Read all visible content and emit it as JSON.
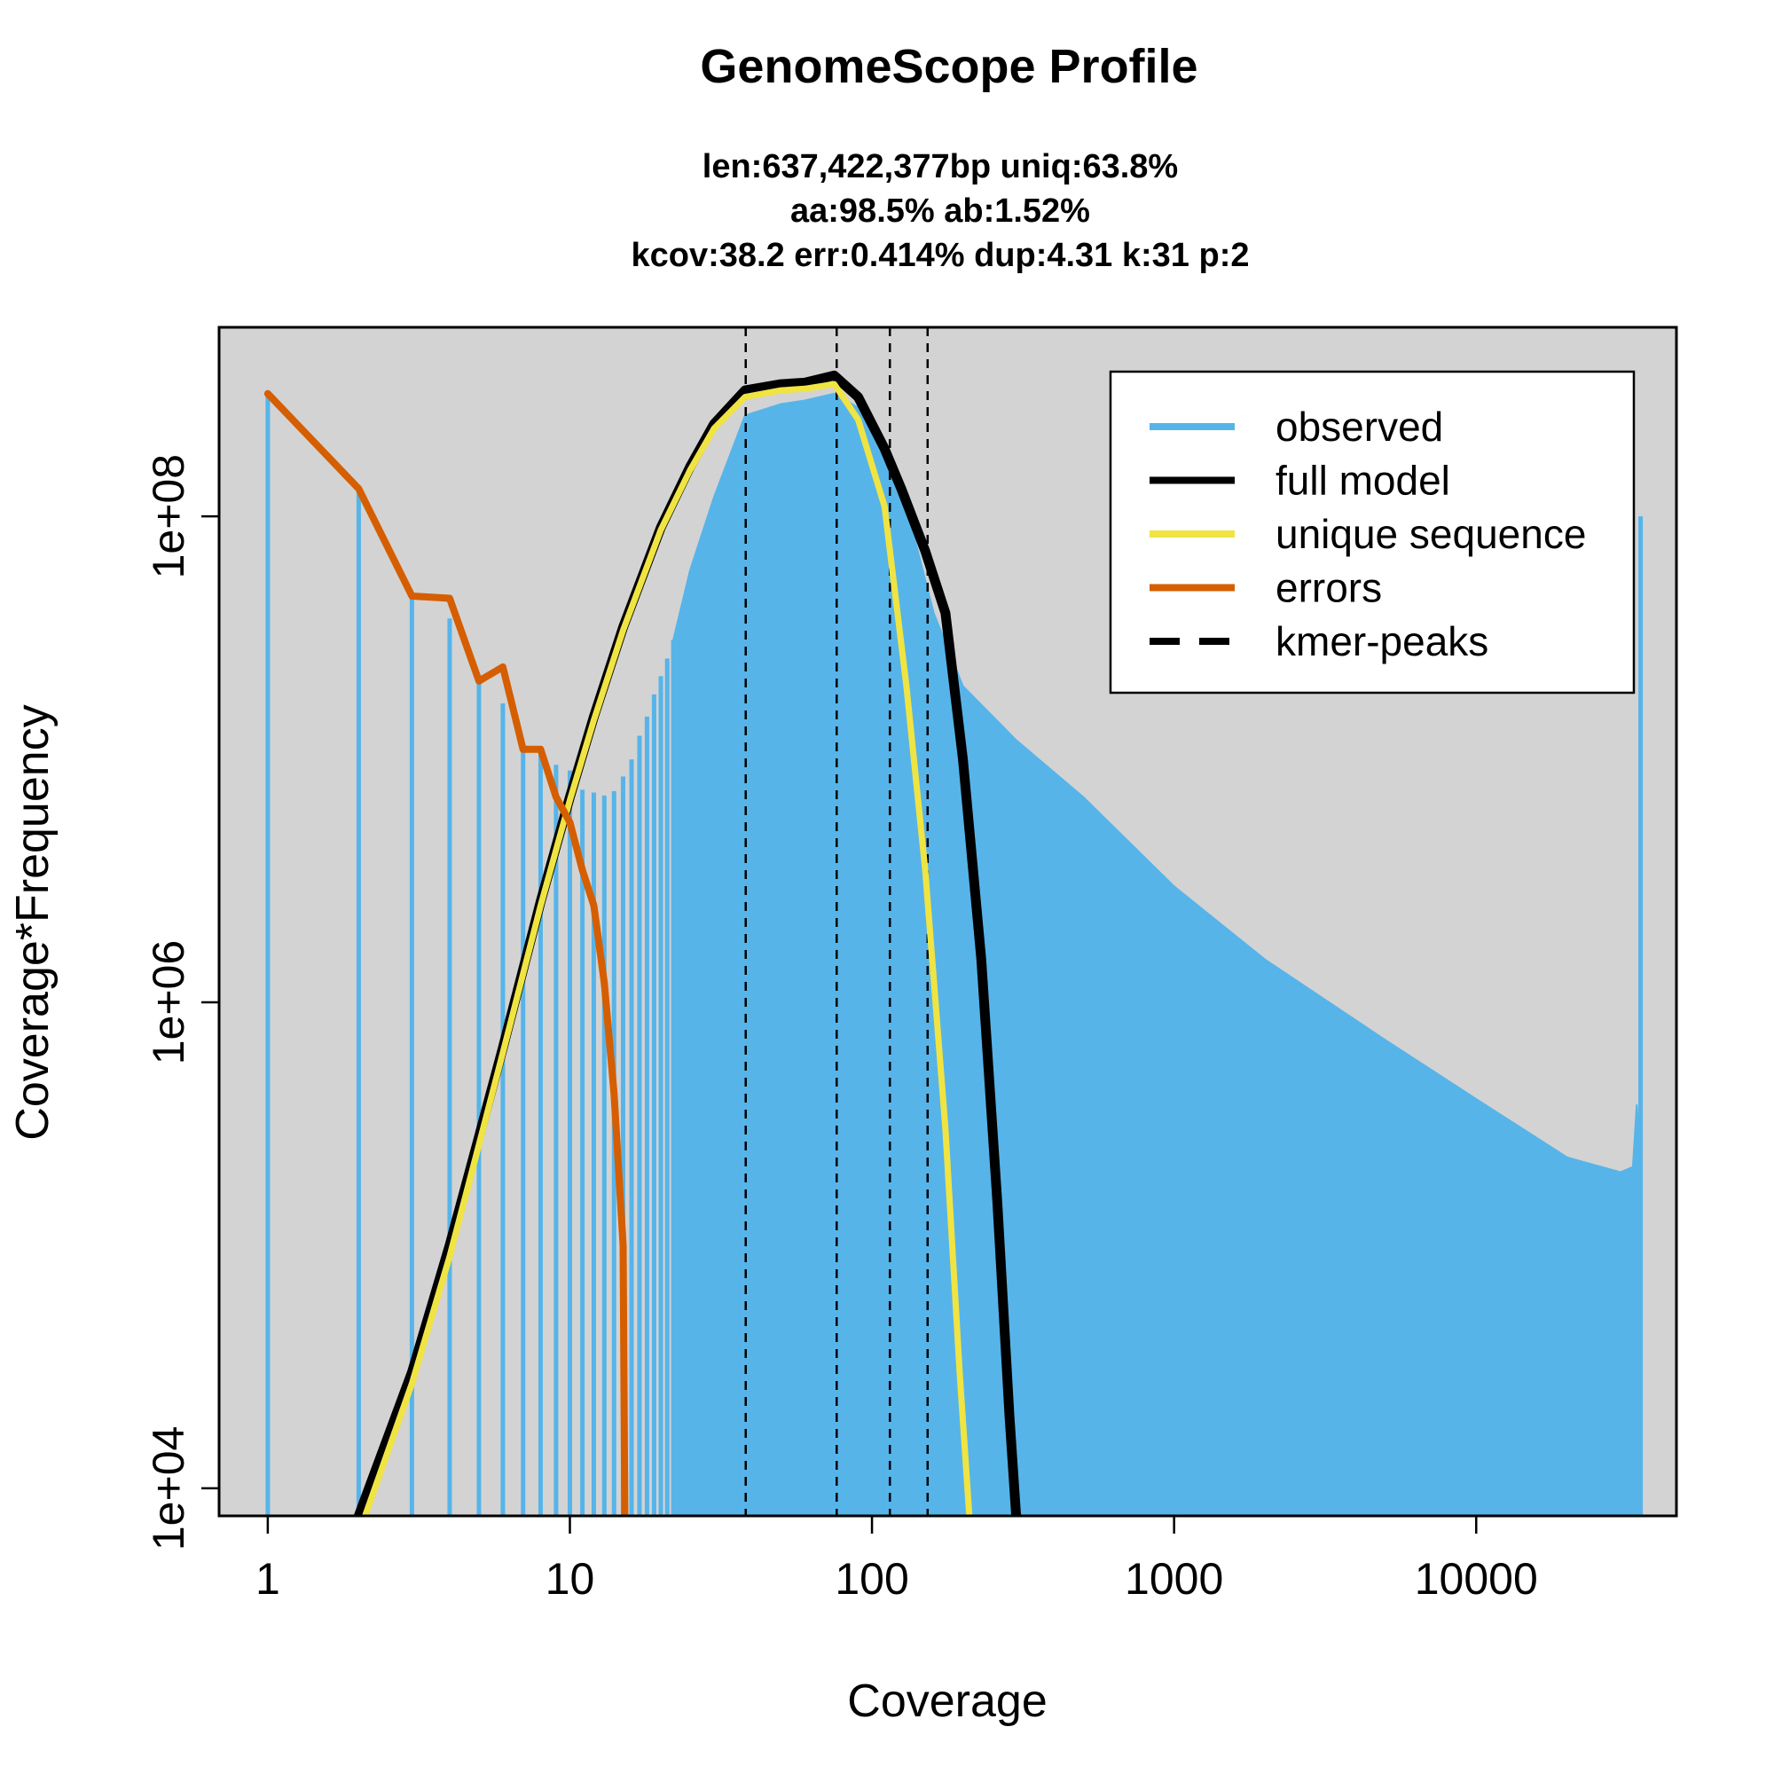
{
  "chart_data": {
    "type": "line",
    "title": "GenomeScope Profile",
    "subtitle_lines": [
      "len:637,422,377bp uniq:63.8%",
      "aa:98.5% ab:1.52%",
      "kcov:38.2 err:0.414%  dup:4.31  k:31 p:2"
    ],
    "xlabel": "Coverage",
    "ylabel": "Coverage*Frequency",
    "x_scale": "log",
    "y_scale": "log",
    "xlim": [
      0.69,
      46000
    ],
    "ylim": [
      7700,
      600000000
    ],
    "x_ticks": [
      {
        "v": 1,
        "label": "1"
      },
      {
        "v": 10,
        "label": "10"
      },
      {
        "v": 100,
        "label": "100"
      },
      {
        "v": 1000,
        "label": "1000"
      },
      {
        "v": 10000,
        "label": "10000"
      }
    ],
    "y_ticks": [
      {
        "v": 10000,
        "label": "1e+04"
      },
      {
        "v": 1000000,
        "label": "1e+06"
      },
      {
        "v": 100000000,
        "label": "1e+08"
      }
    ],
    "background": "#d3d3d3",
    "colors": {
      "observed": "#56b4e9",
      "full_model": "#000000",
      "unique_sequence": "#f0e442",
      "errors": "#d55e00",
      "kmer_peaks": "#000000"
    },
    "legend": {
      "position": "top-right",
      "entries": [
        {
          "label": "observed",
          "key": "observed",
          "dashed": false
        },
        {
          "label": "full model",
          "key": "full_model",
          "dashed": false
        },
        {
          "label": "unique sequence",
          "key": "unique_sequence",
          "dashed": false
        },
        {
          "label": "errors",
          "key": "errors",
          "dashed": false
        },
        {
          "label": "kmer-peaks",
          "key": "kmer_peaks",
          "dashed": true
        }
      ]
    },
    "kmer_peaks": [
      38.2,
      76.4,
      114.6,
      152.8
    ],
    "observed_discrete": [
      {
        "x": 1,
        "y": 320000000
      },
      {
        "x": 2,
        "y": 130000000
      },
      {
        "x": 3,
        "y": 47000000
      },
      {
        "x": 4,
        "y": 38000000
      },
      {
        "x": 5,
        "y": 21000000
      },
      {
        "x": 6,
        "y": 17000000
      },
      {
        "x": 7,
        "y": 11000000
      },
      {
        "x": 8,
        "y": 10500000
      },
      {
        "x": 9,
        "y": 9500000
      },
      {
        "x": 10,
        "y": 9000000
      },
      {
        "x": 11,
        "y": 7500000
      },
      {
        "x": 12,
        "y": 7300000
      },
      {
        "x": 13,
        "y": 7100000
      },
      {
        "x": 14,
        "y": 7400000
      },
      {
        "x": 15,
        "y": 8500000
      },
      {
        "x": 16,
        "y": 10000000
      },
      {
        "x": 17,
        "y": 12500000
      },
      {
        "x": 18,
        "y": 15000000
      },
      {
        "x": 19,
        "y": 18500000
      },
      {
        "x": 20,
        "y": 22000000
      },
      {
        "x": 21,
        "y": 26000000
      },
      {
        "x": 22,
        "y": 31000000
      }
    ],
    "observed_envelope": [
      {
        "x": 22,
        "y": 31000000
      },
      {
        "x": 25,
        "y": 60000000
      },
      {
        "x": 30,
        "y": 120000000
      },
      {
        "x": 38,
        "y": 260000000
      },
      {
        "x": 50,
        "y": 290000000
      },
      {
        "x": 60,
        "y": 300000000
      },
      {
        "x": 75,
        "y": 320000000
      },
      {
        "x": 90,
        "y": 280000000
      },
      {
        "x": 110,
        "y": 200000000
      },
      {
        "x": 130,
        "y": 110000000
      },
      {
        "x": 160,
        "y": 40000000
      },
      {
        "x": 200,
        "y": 20000000
      },
      {
        "x": 300,
        "y": 12000000
      },
      {
        "x": 500,
        "y": 7000000
      },
      {
        "x": 1000,
        "y": 3000000
      },
      {
        "x": 2000,
        "y": 1500000
      },
      {
        "x": 5000,
        "y": 700000
      },
      {
        "x": 10000,
        "y": 400000
      },
      {
        "x": 20000,
        "y": 230000
      },
      {
        "x": 30000,
        "y": 200000
      },
      {
        "x": 33000,
        "y": 210000
      },
      {
        "x": 34000,
        "y": 380000
      },
      {
        "x": 35000,
        "y": 220000
      }
    ],
    "observed_final_spike": {
      "x": 35000,
      "y": 100000000
    },
    "full_model": [
      {
        "x": 2,
        "y": 7700
      },
      {
        "x": 3,
        "y": 30000
      },
      {
        "x": 4,
        "y": 100000
      },
      {
        "x": 5,
        "y": 280000
      },
      {
        "x": 6,
        "y": 650000
      },
      {
        "x": 8,
        "y": 2600000
      },
      {
        "x": 10,
        "y": 7000000
      },
      {
        "x": 12,
        "y": 15000000
      },
      {
        "x": 15,
        "y": 35000000
      },
      {
        "x": 20,
        "y": 90000000
      },
      {
        "x": 25,
        "y": 160000000
      },
      {
        "x": 30,
        "y": 240000000
      },
      {
        "x": 38,
        "y": 330000000
      },
      {
        "x": 50,
        "y": 350000000
      },
      {
        "x": 60,
        "y": 355000000
      },
      {
        "x": 75,
        "y": 380000000
      },
      {
        "x": 90,
        "y": 310000000
      },
      {
        "x": 110,
        "y": 190000000
      },
      {
        "x": 125,
        "y": 130000000
      },
      {
        "x": 150,
        "y": 72000000
      },
      {
        "x": 175,
        "y": 40000000
      },
      {
        "x": 200,
        "y": 10000000
      },
      {
        "x": 230,
        "y": 1500000
      },
      {
        "x": 260,
        "y": 150000
      },
      {
        "x": 285,
        "y": 20000
      },
      {
        "x": 300,
        "y": 7700
      }
    ],
    "unique_sequence": [
      {
        "x": 2.1,
        "y": 7700
      },
      {
        "x": 3,
        "y": 27000
      },
      {
        "x": 4,
        "y": 90000
      },
      {
        "x": 5,
        "y": 260000
      },
      {
        "x": 6,
        "y": 620000
      },
      {
        "x": 8,
        "y": 2500000
      },
      {
        "x": 10,
        "y": 6800000
      },
      {
        "x": 12,
        "y": 14500000
      },
      {
        "x": 15,
        "y": 34000000
      },
      {
        "x": 20,
        "y": 88000000
      },
      {
        "x": 25,
        "y": 155000000
      },
      {
        "x": 30,
        "y": 230000000
      },
      {
        "x": 38,
        "y": 310000000
      },
      {
        "x": 50,
        "y": 330000000
      },
      {
        "x": 60,
        "y": 335000000
      },
      {
        "x": 75,
        "y": 350000000
      },
      {
        "x": 90,
        "y": 250000000
      },
      {
        "x": 110,
        "y": 110000000
      },
      {
        "x": 130,
        "y": 20000000
      },
      {
        "x": 150,
        "y": 3500000
      },
      {
        "x": 175,
        "y": 300000
      },
      {
        "x": 195,
        "y": 30000
      },
      {
        "x": 210,
        "y": 7700
      }
    ],
    "errors": [
      {
        "x": 1,
        "y": 320000000
      },
      {
        "x": 2,
        "y": 130000000
      },
      {
        "x": 3,
        "y": 47000000
      },
      {
        "x": 4,
        "y": 46000000
      },
      {
        "x": 5,
        "y": 21000000
      },
      {
        "x": 6,
        "y": 24000000
      },
      {
        "x": 7,
        "y": 11000000
      },
      {
        "x": 8,
        "y": 11000000
      },
      {
        "x": 9,
        "y": 7000000
      },
      {
        "x": 10,
        "y": 5500000
      },
      {
        "x": 11,
        "y": 3500000
      },
      {
        "x": 12,
        "y": 2500000
      },
      {
        "x": 13,
        "y": 1200000
      },
      {
        "x": 14,
        "y": 420000
      },
      {
        "x": 15,
        "y": 100000
      },
      {
        "x": 15.2,
        "y": 7700
      }
    ]
  }
}
